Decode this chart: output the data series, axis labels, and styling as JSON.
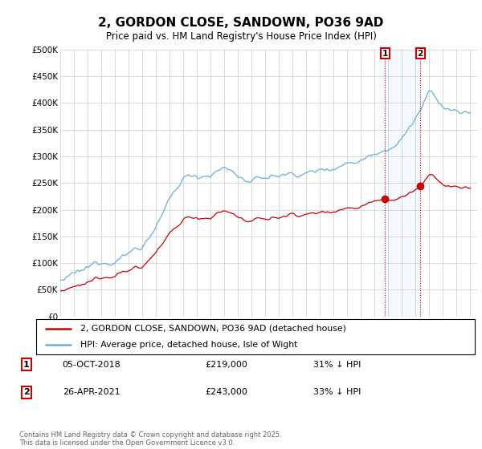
{
  "title": "2, GORDON CLOSE, SANDOWN, PO36 9AD",
  "subtitle": "Price paid vs. HM Land Registry's House Price Index (HPI)",
  "ylabel_ticks": [
    "£0",
    "£50K",
    "£100K",
    "£150K",
    "£200K",
    "£250K",
    "£300K",
    "£350K",
    "£400K",
    "£450K",
    "£500K"
  ],
  "ytick_values": [
    0,
    50000,
    100000,
    150000,
    200000,
    250000,
    300000,
    350000,
    400000,
    450000,
    500000
  ],
  "ylim": [
    0,
    500000
  ],
  "xlim_start": 1995.0,
  "xlim_end": 2025.5,
  "hpi_color": "#6baed6",
  "price_color": "#cc0000",
  "marker1_date_x": 2018.77,
  "marker2_date_x": 2021.33,
  "marker1_price": 219000,
  "marker2_price": 243000,
  "marker1_label": "05-OCT-2018",
  "marker1_amount": "£219,000",
  "marker1_pct": "31% ↓ HPI",
  "marker2_label": "26-APR-2021",
  "marker2_amount": "£243,000",
  "marker2_pct": "33% ↓ HPI",
  "legend_line1": "2, GORDON CLOSE, SANDOWN, PO36 9AD (detached house)",
  "legend_line2": "HPI: Average price, detached house, Isle of Wight",
  "footnote": "Contains HM Land Registry data © Crown copyright and database right 2025.\nThis data is licensed under the Open Government Licence v3.0.",
  "background_color": "#ffffff",
  "plot_bg_color": "#ffffff",
  "grid_color": "#cccccc"
}
